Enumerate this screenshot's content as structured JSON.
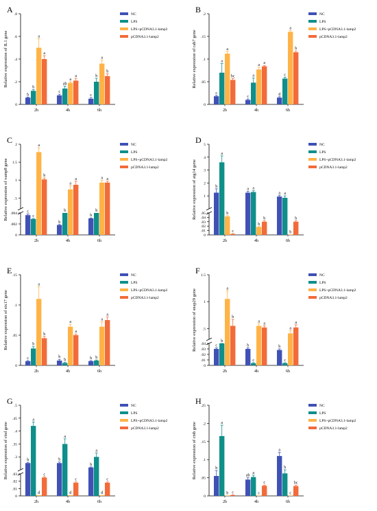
{
  "legend": {
    "items": [
      {
        "name": "NC",
        "color": "#3f51b5"
      },
      {
        "name": "LPS",
        "color": "#0f8f8a"
      },
      {
        "name": "LPS+pCDNA3.1-lamp2",
        "color": "#ffb347"
      },
      {
        "name": "pCDNA3.1-lamp2",
        "color": "#f26b3a"
      }
    ]
  },
  "chart_data": [
    {
      "type": "bar",
      "panel": "A",
      "gene": "IL1",
      "ylabel": "Relative expression of IL1 gene",
      "categories": [
        "2h",
        "4h",
        "6h"
      ],
      "ylim": [
        0,
        0.8
      ],
      "yticks": [
        0,
        0.2,
        0.4,
        0.6,
        0.8
      ],
      "series": [
        {
          "name": "NC",
          "values": [
            0.06,
            0.08,
            0.05
          ],
          "errors": [
            0.005,
            0.01,
            0.01
          ],
          "letters": [
            "b",
            "c",
            "c"
          ]
        },
        {
          "name": "LPS",
          "values": [
            0.12,
            0.14,
            0.2
          ],
          "errors": [
            0.01,
            0.02,
            0.03
          ],
          "letters": [
            "b",
            "ab",
            "b"
          ]
        },
        {
          "name": "LPS+pCDNA3.1-lamp2",
          "values": [
            0.5,
            0.19,
            0.36
          ],
          "errors": [
            0.08,
            0.01,
            0.03
          ],
          "letters": [
            "a",
            "a",
            "a"
          ]
        },
        {
          "name": "pCDNA3.1-lamp2",
          "values": [
            0.4,
            0.21,
            0.25
          ],
          "errors": [
            0.03,
            0.02,
            0.02
          ],
          "letters": [
            "a",
            "a",
            "b"
          ]
        }
      ]
    },
    {
      "type": "bar",
      "panel": "B",
      "gene": "rab7",
      "ylabel": "Relative expression of rab7 gene",
      "categories": [
        "2h",
        "4h",
        "6h"
      ],
      "ylim": [
        0,
        0.2
      ],
      "yticks": [
        0,
        0.05,
        0.1,
        0.15,
        0.2
      ],
      "series": [
        {
          "name": "NC",
          "values": [
            0.018,
            0.01,
            0.015
          ],
          "errors": [
            0.002,
            0.002,
            0.002
          ],
          "letters": [
            "c",
            "c",
            "d"
          ]
        },
        {
          "name": "LPS",
          "values": [
            0.07,
            0.048,
            0.057
          ],
          "errors": [
            0.02,
            0.01,
            0.003
          ],
          "letters": [
            "a",
            "a",
            "c"
          ]
        },
        {
          "name": "LPS+pCDNA3.1-lamp2",
          "values": [
            0.112,
            0.077,
            0.16
          ],
          "errors": [
            0.005,
            0.005,
            0.003
          ],
          "letters": [
            "a",
            "a",
            "a"
          ]
        },
        {
          "name": "pCDNA3.1-lamp2",
          "values": [
            0.054,
            0.084,
            0.115
          ],
          "errors": [
            0.003,
            0.002,
            0.003
          ],
          "letters": [
            "bc",
            "a",
            "b"
          ]
        }
      ]
    },
    {
      "type": "bar",
      "panel": "C",
      "gene": "vamp8",
      "ylabel": "Relative expression of vamp8 gene",
      "categories": [
        "2h",
        "4h",
        "6h"
      ],
      "broken_axis": true,
      "lower": {
        "ylim": [
          0,
          0.004
        ],
        "yticks": [
          0,
          0.002,
          0.004
        ]
      },
      "upper": {
        "ylim": [
          0.2,
          2.0
        ],
        "yticks": [
          0.5,
          1.0,
          1.5,
          2.0
        ]
      },
      "series": [
        {
          "name": "NC",
          "values": [
            0.0036,
            0.0018,
            0.003
          ],
          "errors": [
            0.0002,
            0.0001,
            0.0001
          ],
          "letters": [
            "c",
            "b",
            "b"
          ]
        },
        {
          "name": "LPS",
          "values": [
            0.0029,
            0.008,
            0.06
          ],
          "errors": [
            0.0001,
            0,
            0
          ],
          "letters": [
            "c",
            "b",
            "b"
          ]
        },
        {
          "name": "LPS+pCDNA3.1-lamp2",
          "values": [
            1.78,
            0.74,
            0.93
          ],
          "errors": [
            0.12,
            0.1,
            0.06
          ],
          "letters": [
            "a",
            "a",
            "a"
          ]
        },
        {
          "name": "pCDNA3.1-lamp2",
          "values": [
            1.02,
            0.87,
            0.93
          ],
          "errors": [
            0.04,
            0.1,
            0.04
          ],
          "letters": [
            "b",
            "a",
            "a"
          ]
        }
      ]
    },
    {
      "type": "bar",
      "panel": "D",
      "gene": "atg14",
      "ylabel": "Relative expression of atg14 gene",
      "categories": [
        "2h",
        "4h",
        "6h"
      ],
      "broken_axis": true,
      "lower": {
        "ylim": [
          0,
          0.05
        ],
        "yticks": [
          0,
          0.01,
          0.02,
          0.03,
          0.04,
          0.05
        ]
      },
      "upper": {
        "ylim": [
          0,
          5
        ],
        "yticks": [
          1,
          2,
          3,
          4,
          5
        ]
      },
      "series": [
        {
          "name": "NC",
          "values": [
            1.25,
            1.25,
            0.95
          ],
          "errors": [
            0.3,
            0.1,
            0.1
          ],
          "letters": [
            "b",
            "a",
            "a"
          ]
        },
        {
          "name": "LPS",
          "values": [
            3.6,
            1.3,
            0.85
          ],
          "errors": [
            0.5,
            0.1,
            0.15
          ],
          "letters": [
            "a",
            "a",
            "a"
          ]
        },
        {
          "name": "LPS+pCDNA3.1-lamp2",
          "values": [
            0.042,
            0.018,
            0.001
          ],
          "errors": [
            0.002,
            0.001,
            0
          ],
          "letters": [
            "b",
            "b",
            "b"
          ]
        },
        {
          "name": "pCDNA3.1-lamp2",
          "values": [
            0.002,
            0.03,
            0.03
          ],
          "errors": [
            0.001,
            0.002,
            0.002
          ],
          "letters": [
            "c",
            "b",
            "b"
          ]
        }
      ]
    },
    {
      "type": "bar",
      "panel": "E",
      "gene": "stx17",
      "ylabel": "Relative expression of stx17 gene",
      "categories": [
        "2h",
        "4h",
        "6h"
      ],
      "ylim": [
        0,
        0.15
      ],
      "yticks": [
        0,
        0.05,
        0.1,
        0.15
      ],
      "series": [
        {
          "name": "NC",
          "values": [
            0.007,
            0.008,
            0.007
          ],
          "errors": [
            0.001,
            0.002,
            0.001
          ],
          "letters": [
            "c",
            "b",
            "b"
          ]
        },
        {
          "name": "LPS",
          "values": [
            0.028,
            0.004,
            0.008
          ],
          "errors": [
            0.003,
            0.001,
            0.001
          ],
          "letters": [
            "b",
            "b",
            "b"
          ]
        },
        {
          "name": "LPS+pCDNA3.1-lamp2",
          "values": [
            0.11,
            0.064,
            0.064
          ],
          "errors": [
            0.02,
            0.004,
            0.008
          ],
          "letters": [
            "a",
            "a",
            "a"
          ]
        },
        {
          "name": "pCDNA3.1-lamp2",
          "values": [
            0.045,
            0.05,
            0.075
          ],
          "errors": [
            0.003,
            0.002,
            0.005
          ],
          "letters": [
            "b",
            "a",
            "a"
          ]
        }
      ]
    },
    {
      "type": "bar",
      "panel": "F",
      "gene": "snap29",
      "ylabel": "Relative expression of snap29 gene",
      "categories": [
        "2h",
        "4h",
        "6h"
      ],
      "broken_axis": true,
      "lower": {
        "ylim": [
          0,
          0.04
        ],
        "yticks": [
          0,
          0.01,
          0.02,
          0.03,
          0.04
        ]
      },
      "upper": {
        "ylim": [
          0.3,
          1.5
        ],
        "yticks": [
          0.5,
          1.0,
          1.5
        ]
      },
      "series": [
        {
          "name": "NC",
          "values": [
            0.03,
            0.03,
            0.028
          ],
          "errors": [
            0.002,
            0.002,
            0.002
          ],
          "letters": [
            "c",
            "b",
            "b"
          ]
        },
        {
          "name": "LPS",
          "values": [
            0.04,
            0.004,
            0.004
          ],
          "errors": [
            0.001,
            0.001,
            0.001
          ],
          "letters": [
            "b",
            "c",
            "c"
          ]
        },
        {
          "name": "LPS+pCDNA3.1-lamp2",
          "values": [
            1.05,
            0.55,
            0.41
          ],
          "errors": [
            0.15,
            0.04,
            0.05
          ],
          "letters": [
            "a",
            "a",
            "a"
          ]
        },
        {
          "name": "pCDNA3.1-lamp2",
          "values": [
            0.55,
            0.52,
            0.52
          ],
          "errors": [
            0.12,
            0.03,
            0.05
          ],
          "letters": [
            "b",
            "a",
            "a"
          ]
        }
      ]
    },
    {
      "type": "bar",
      "panel": "G",
      "gene": "ctsd",
      "ylabel": "Relative expression of ctsd gene",
      "categories": [
        "2h",
        "4h",
        "6h"
      ],
      "broken_axis": true,
      "lower": {
        "ylim": [
          0,
          0.03
        ],
        "yticks": [
          0,
          0.01,
          0.02,
          0.03
        ]
      },
      "upper": {
        "ylim": [
          0.25,
          0.5
        ],
        "yticks": [
          0.3,
          0.35,
          0.4,
          0.45,
          0.5
        ]
      },
      "series": [
        {
          "name": "NC",
          "values": [
            0.276,
            0.276,
            0.259
          ],
          "errors": [
            0.003,
            0.004,
            0.002
          ],
          "letters": [
            "b",
            "b",
            "b"
          ]
        },
        {
          "name": "LPS",
          "values": [
            0.42,
            0.35,
            0.3
          ],
          "errors": [
            0.015,
            0.02,
            0.015
          ],
          "letters": [
            "a",
            "a",
            "a"
          ]
        },
        {
          "name": "LPS+pCDNA3.1-lamp2",
          "values": [
            0.001,
            0.001,
            0.001
          ],
          "errors": [
            0,
            0,
            0
          ],
          "letters": [
            "d",
            "d",
            "d"
          ]
        },
        {
          "name": "pCDNA3.1-lamp2",
          "values": [
            0.025,
            0.018,
            0.018
          ],
          "errors": [
            0.001,
            0.001,
            0.001
          ],
          "letters": [
            "c",
            "c",
            "c"
          ]
        }
      ]
    },
    {
      "type": "bar",
      "panel": "H",
      "gene": "ctsb",
      "ylabel": "Relative expression of ctsb gene",
      "categories": [
        "2h",
        "4h",
        "6h"
      ],
      "ylim": [
        0,
        0.25
      ],
      "yticks": [
        0,
        0.05,
        0.1,
        0.15,
        0.2,
        0.25
      ],
      "series": [
        {
          "name": "NC",
          "values": [
            0.055,
            0.045,
            0.11
          ],
          "errors": [
            0.015,
            0.005,
            0.01
          ],
          "letters": [
            "b",
            "ab",
            "a"
          ]
        },
        {
          "name": "LPS",
          "values": [
            0.165,
            0.052,
            0.062
          ],
          "errors": [
            0.03,
            0.005,
            0.01
          ],
          "letters": [
            "a",
            "a",
            "b"
          ]
        },
        {
          "name": "LPS+pCDNA3.1-lamp2",
          "values": [
            0.001,
            0.001,
            0.001
          ],
          "errors": [
            0,
            0,
            0
          ],
          "letters": [
            "b",
            "c",
            "c"
          ]
        },
        {
          "name": "pCDNA3.1-lamp2",
          "values": [
            0.002,
            0.028,
            0.027
          ],
          "errors": [
            0.001,
            0.002,
            0.002
          ],
          "letters": [
            "c",
            "c",
            "bc"
          ]
        }
      ]
    }
  ]
}
